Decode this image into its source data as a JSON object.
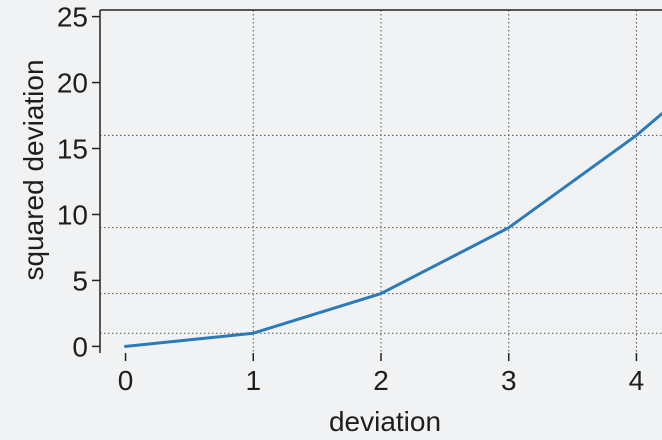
{
  "chart_data": {
    "type": "line",
    "title": "",
    "xlabel": "deviation",
    "ylabel": "squared deviation",
    "x": [
      0,
      1,
      2,
      3,
      4,
      4.2
    ],
    "series": [
      {
        "name": "",
        "values": [
          0,
          1,
          4,
          9,
          16,
          17.64
        ],
        "color": "#2b7bb9"
      }
    ],
    "xlim": [
      -0.2,
      4.2
    ],
    "ylim": [
      -0.5,
      25.5
    ],
    "x_ticks": [
      0,
      1,
      2,
      3,
      4
    ],
    "y_ticks": [
      0,
      5,
      10,
      15,
      20,
      25
    ],
    "x_tick_labels": [
      "0",
      "1",
      "2",
      "3",
      "4"
    ],
    "y_tick_labels": [
      "0",
      "5",
      "10",
      "15",
      "20",
      "25"
    ],
    "grid": true,
    "grid_style": "dotted",
    "gridlines_y": [
      1,
      4,
      9,
      16
    ],
    "gridlines_x": [
      1,
      2,
      3,
      4
    ],
    "legend": "none",
    "colors": {
      "background": "#f1f2f4",
      "axis": "#222222",
      "grid": "#555555",
      "text": "#1e1e1e"
    }
  }
}
